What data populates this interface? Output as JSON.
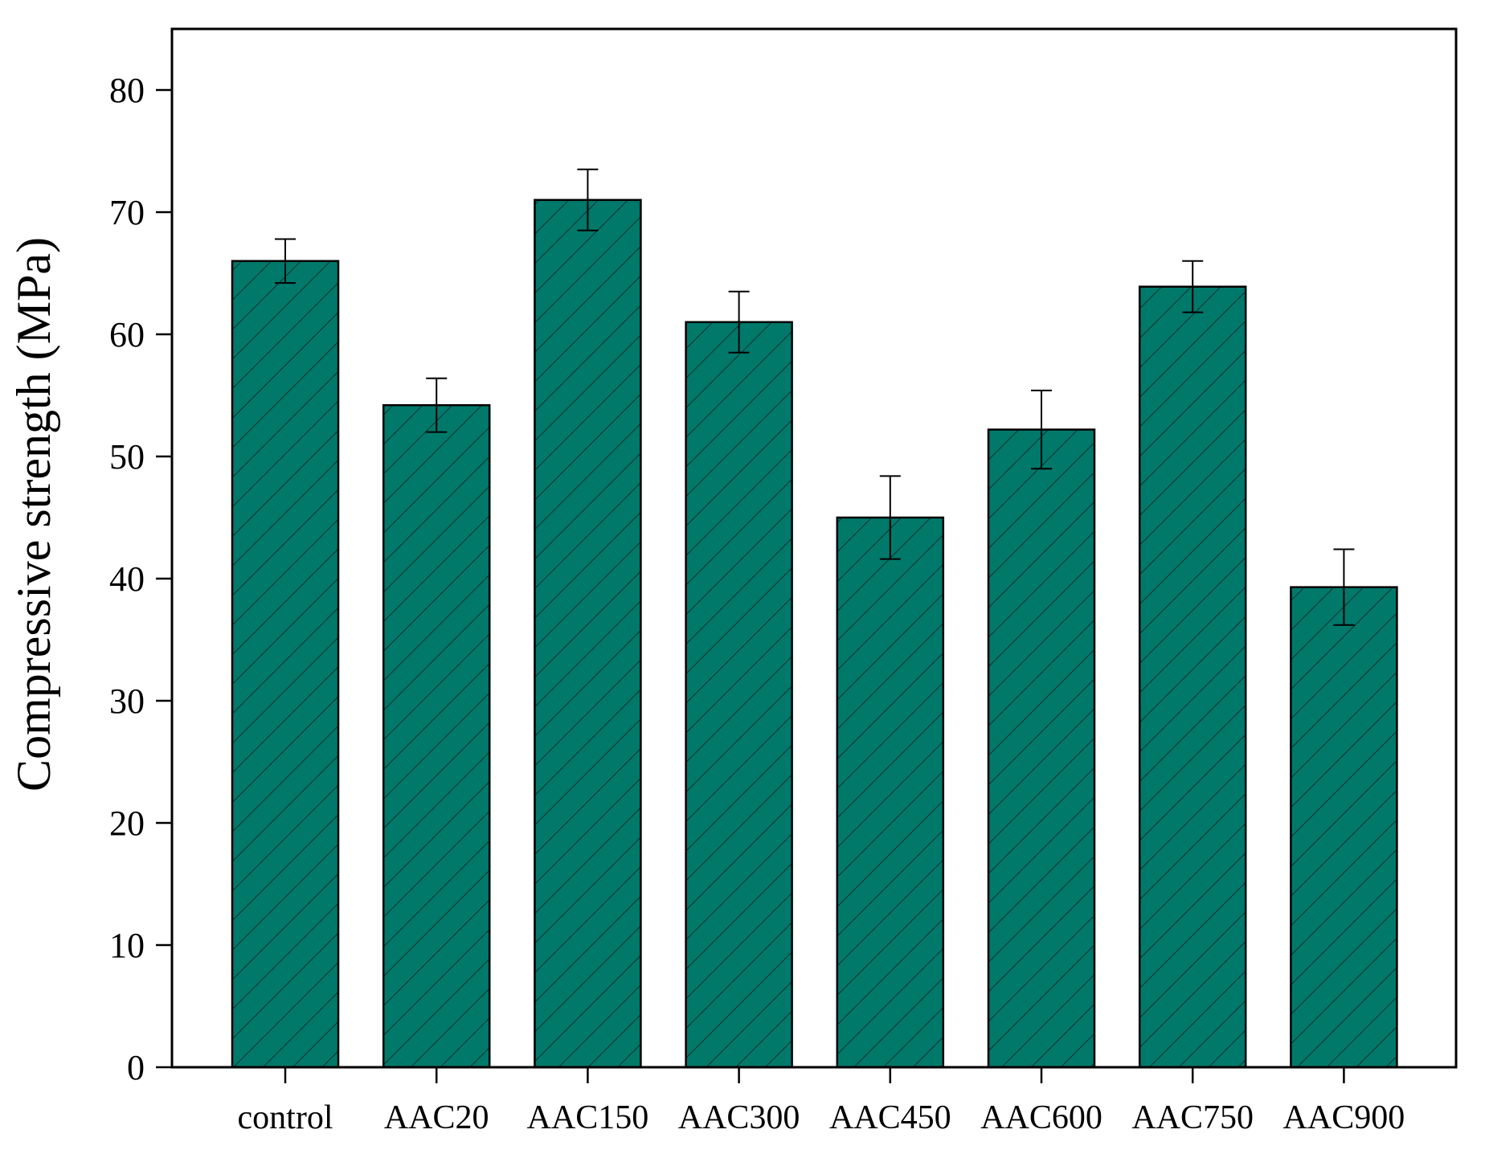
{
  "chart_data": {
    "type": "bar",
    "title": "",
    "xlabel": "",
    "ylabel": "Compressive strength (MPa)",
    "ylim": [
      0,
      85
    ],
    "yticks": [
      0,
      10,
      20,
      30,
      40,
      50,
      60,
      70,
      80
    ],
    "categories": [
      "control",
      "AAC20",
      "AAC150",
      "AAC300",
      "AAC450",
      "AAC600",
      "AAC750",
      "AAC900"
    ],
    "values": [
      66.0,
      54.2,
      71.0,
      61.0,
      45.0,
      52.2,
      63.9,
      39.3
    ],
    "errors": [
      1.8,
      2.2,
      2.5,
      2.5,
      3.4,
      3.2,
      2.1,
      3.1
    ],
    "bar_fill": "#00796b",
    "hatch_color": "#0a2f2a",
    "grid": false,
    "legend": "none"
  }
}
